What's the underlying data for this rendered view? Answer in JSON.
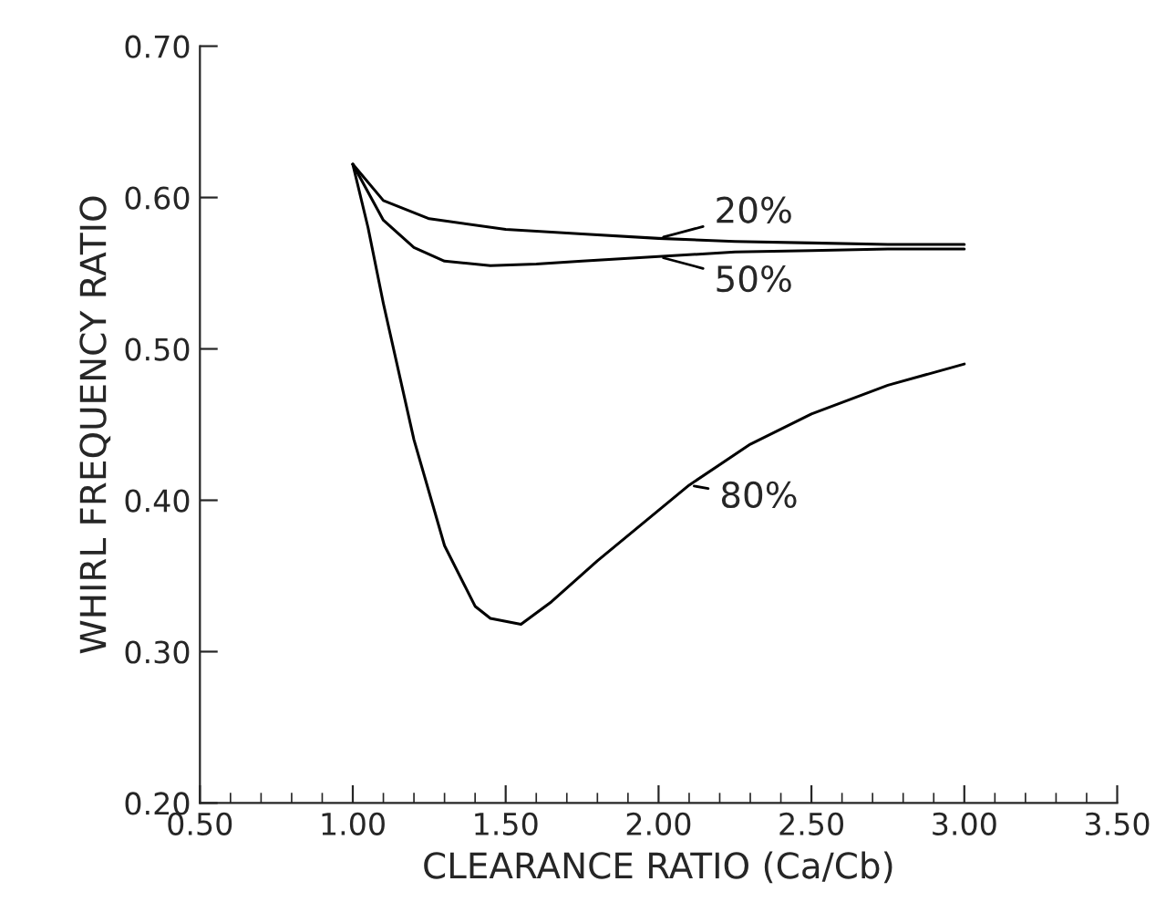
{
  "chart_data": {
    "type": "line",
    "xlabel": "CLEARANCE RATIO (Ca/Cb)",
    "ylabel": "WHIRL FREQUENCY RATIO",
    "xlim": [
      0.5,
      3.5
    ],
    "xticks": [
      {
        "value": 0.5,
        "label": "0.50"
      },
      {
        "value": 1.0,
        "label": "1.00"
      },
      {
        "value": 1.5,
        "label": "1.50"
      },
      {
        "value": 2.0,
        "label": "2.00"
      },
      {
        "value": 2.5,
        "label": "2.50"
      },
      {
        "value": 3.0,
        "label": "3.00"
      },
      {
        "value": 3.5,
        "label": "3.50"
      }
    ],
    "ylim": [
      0.2,
      0.7
    ],
    "yticks": [
      {
        "value": 0.2,
        "label": "0.20"
      },
      {
        "value": 0.3,
        "label": "0.30"
      },
      {
        "value": 0.4,
        "label": "0.40"
      },
      {
        "value": 0.5,
        "label": "0.50"
      },
      {
        "value": 0.6,
        "label": "0.60"
      },
      {
        "value": 0.7,
        "label": "0.70"
      }
    ],
    "grid": false,
    "legend": "center",
    "marker": "none",
    "line_style": "solid",
    "series": [
      {
        "name": "20%",
        "color": "#000000",
        "x": [
          1.0,
          1.1,
          1.25,
          1.5,
          1.75,
          2.0,
          2.25,
          2.5,
          2.75,
          3.0
        ],
        "values": [
          0.622,
          0.598,
          0.586,
          0.579,
          0.576,
          0.573,
          0.571,
          0.57,
          0.569,
          0.569
        ]
      },
      {
        "name": "50%",
        "color": "#000000",
        "x": [
          1.0,
          1.1,
          1.2,
          1.3,
          1.45,
          1.6,
          1.75,
          2.0,
          2.25,
          2.5,
          2.75,
          3.0
        ],
        "values": [
          0.622,
          0.585,
          0.567,
          0.558,
          0.555,
          0.556,
          0.558,
          0.561,
          0.564,
          0.565,
          0.566,
          0.566
        ]
      },
      {
        "name": "80%",
        "color": "#000000",
        "x": [
          1.0,
          1.05,
          1.1,
          1.2,
          1.3,
          1.4,
          1.45,
          1.55,
          1.65,
          1.8,
          1.95,
          2.1,
          2.3,
          2.5,
          2.75,
          3.0
        ],
        "values": [
          0.622,
          0.58,
          0.53,
          0.44,
          0.37,
          0.33,
          0.322,
          0.318,
          0.333,
          0.36,
          0.385,
          0.41,
          0.437,
          0.457,
          0.476,
          0.49
        ]
      }
    ]
  }
}
